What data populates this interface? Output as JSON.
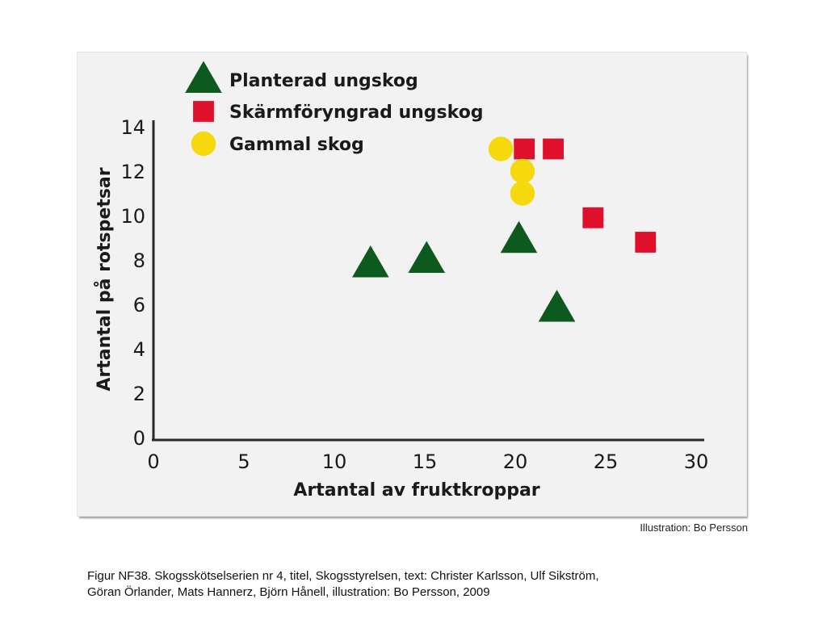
{
  "chart_data": {
    "type": "scatter",
    "xlabel": "Artantal av fruktkroppar",
    "ylabel": "Artantal på rotspetsar",
    "xlim": [
      0,
      30
    ],
    "ylim": [
      0,
      14
    ],
    "x_ticks": [
      0,
      5,
      10,
      15,
      20,
      25,
      30
    ],
    "y_ticks": [
      0,
      2,
      4,
      6,
      8,
      10,
      12,
      14
    ],
    "grid": false,
    "legend_position": "top-left",
    "series": [
      {
        "name": "Planterad ungskog",
        "marker": "triangle",
        "color": "#0d5a1e",
        "points": [
          [
            12,
            7.8
          ],
          [
            15.1,
            8.0
          ],
          [
            20.2,
            8.9
          ],
          [
            22.3,
            5.8
          ]
        ]
      },
      {
        "name": "Skärmföryngrad ungskog",
        "marker": "square",
        "color": "#e0102c",
        "points": [
          [
            20.5,
            13
          ],
          [
            22.1,
            13
          ],
          [
            24.3,
            9.9
          ],
          [
            27.2,
            8.8
          ]
        ]
      },
      {
        "name": "Gammal skog",
        "marker": "circle",
        "color": "#f5d90c",
        "points": [
          [
            19.2,
            13
          ],
          [
            20.4,
            12
          ],
          [
            20.4,
            11
          ]
        ]
      }
    ]
  },
  "credit": "Illustration: Bo Persson",
  "caption": {
    "line1": "Figur  NF38. Skogsskötselserien nr 4, titel, Skogsstyrelsen, text: Christer Karlsson, Ulf Sikström,",
    "line2": "Göran Örlander, Mats Hannerz, Björn Hånell, illustration: Bo Persson, 2009"
  }
}
